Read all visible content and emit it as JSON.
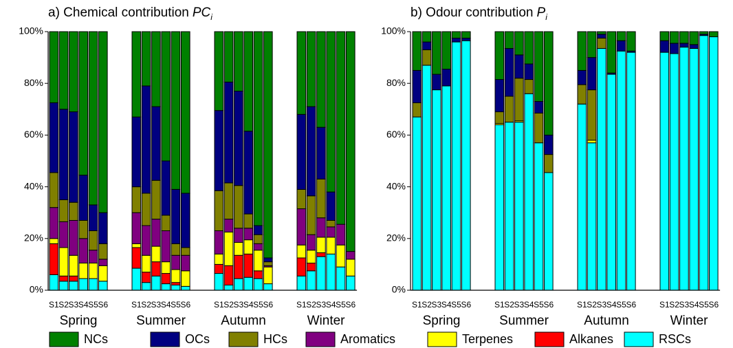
{
  "chart_data": [
    {
      "type": "stacked-bar",
      "title": "a) Chemical contribution",
      "title_symbol": "PC",
      "title_subscript": "i",
      "groups": [
        "Spring",
        "Summer",
        "Autumn",
        "Winter"
      ],
      "categories": [
        "S1",
        "S2",
        "S3",
        "S4",
        "S5",
        "S6",
        "S1",
        "S2",
        "S3",
        "S4",
        "S5",
        "S6",
        "S1",
        "S2",
        "S3",
        "S4",
        "S5",
        "S6",
        "S1",
        "S2",
        "S3",
        "S4",
        "S5",
        "S6"
      ],
      "ylim": [
        0,
        100
      ],
      "yticks": [
        {
          "value": 0,
          "label": "0%"
        },
        {
          "value": 20,
          "label": "20%"
        },
        {
          "value": 40,
          "label": "40%"
        },
        {
          "value": 60,
          "label": "60%"
        },
        {
          "value": 80,
          "label": "80%"
        },
        {
          "value": 100,
          "label": "100%"
        }
      ],
      "series": [
        {
          "name": "RSCs",
          "color": "#00ffff",
          "values": [
            6,
            3.5,
            3.5,
            4.5,
            4.5,
            3.5,
            8.5,
            3,
            5.5,
            2.5,
            2,
            1.5,
            6.5,
            2,
            4.5,
            5,
            4.5,
            2.5,
            5.5,
            7.5,
            13,
            14,
            9,
            5.5
          ]
        },
        {
          "name": "Alkanes",
          "color": "#ff0000",
          "values": [
            12,
            2,
            2,
            0,
            0,
            0,
            8,
            4,
            5.5,
            4,
            1,
            0,
            3.5,
            7.5,
            9,
            9,
            3,
            0,
            7,
            3,
            1.5,
            0,
            0,
            0
          ]
        },
        {
          "name": "Terpenes",
          "color": "#ffff00",
          "values": [
            2,
            11,
            8,
            6,
            6,
            6,
            1.5,
            6.5,
            6,
            4.5,
            5,
            6,
            4,
            13,
            5,
            5.5,
            8,
            6.5,
            5,
            5,
            6,
            6.5,
            8.5,
            6.5
          ]
        },
        {
          "name": "Aromatics",
          "color": "#800080",
          "values": [
            12,
            10,
            13.5,
            9.5,
            5,
            2.5,
            12,
            11.5,
            10.5,
            12,
            5.5,
            6,
            9,
            5,
            5.5,
            4.5,
            2.5,
            0.5,
            14,
            6,
            7.5,
            4,
            8,
            3
          ]
        },
        {
          "name": "HCs",
          "color": "#808000",
          "values": [
            13.5,
            8.5,
            7,
            7,
            7.5,
            6,
            10,
            12.5,
            15,
            6,
            4.5,
            3,
            15.5,
            14,
            16.5,
            5.5,
            3.5,
            1.5,
            7.5,
            15,
            15,
            2.5,
            0,
            0
          ]
        },
        {
          "name": "OCs",
          "color": "#000080",
          "values": [
            27,
            35,
            35,
            17.5,
            10,
            12,
            27,
            41.5,
            28.5,
            21,
            21,
            21,
            31,
            39,
            36.5,
            32,
            3.5,
            1.5,
            29,
            34.5,
            20,
            11,
            0,
            0
          ]
        },
        {
          "name": "NCs",
          "color": "#008000",
          "values": [
            27.5,
            30,
            31,
            55.5,
            67,
            70,
            33,
            21,
            29,
            50,
            61,
            62.5,
            30.5,
            19.5,
            23,
            38.5,
            75,
            87.5,
            32,
            29,
            37,
            62,
            74.5,
            85
          ]
        }
      ]
    },
    {
      "type": "stacked-bar",
      "title": "b) Odour contribution",
      "title_symbol": "P",
      "title_subscript": "i",
      "groups": [
        "Spring",
        "Summer",
        "Autumn",
        "Winter"
      ],
      "categories": [
        "S1",
        "S2",
        "S3",
        "S4",
        "S5",
        "S6",
        "S1",
        "S2",
        "S3",
        "S4",
        "S5",
        "S6",
        "S1",
        "S2",
        "S3",
        "S4",
        "S5",
        "S6",
        "S1",
        "S2",
        "S3",
        "S4",
        "S5",
        "S6"
      ],
      "ylim": [
        0,
        100
      ],
      "yticks": [
        {
          "value": 0,
          "label": "0%"
        },
        {
          "value": 20,
          "label": "20%"
        },
        {
          "value": 40,
          "label": "40%"
        },
        {
          "value": 60,
          "label": "60%"
        },
        {
          "value": 80,
          "label": "80%"
        },
        {
          "value": 100,
          "label": "100%"
        }
      ],
      "series": [
        {
          "name": "RSCs",
          "color": "#00ffff",
          "values": [
            67,
            87,
            77.5,
            79,
            96,
            96.5,
            64,
            65,
            65,
            76,
            57,
            45.5,
            72,
            57,
            93.5,
            83.5,
            92.5,
            92,
            92,
            91.5,
            94,
            93.5,
            98.5,
            98
          ]
        },
        {
          "name": "Alkanes",
          "color": "#ff0000",
          "values": [
            0,
            0,
            0,
            0,
            0,
            0,
            0,
            0,
            0,
            0,
            0,
            0,
            0,
            0,
            0,
            0,
            0,
            0,
            0,
            0,
            0,
            0,
            0,
            0
          ]
        },
        {
          "name": "Terpenes",
          "color": "#ffff00",
          "values": [
            0,
            0,
            0,
            0,
            0,
            0,
            0.5,
            0,
            0.5,
            0,
            0,
            0,
            0,
            1,
            0,
            0,
            0,
            0,
            0,
            0,
            0,
            0,
            0,
            0
          ]
        },
        {
          "name": "Aromatics",
          "color": "#800080",
          "values": [
            0,
            0,
            0,
            0,
            0,
            0,
            0,
            0,
            0,
            0,
            0,
            0,
            0,
            0,
            0,
            0,
            0,
            0,
            0,
            0,
            0,
            0,
            0,
            0
          ]
        },
        {
          "name": "HCs",
          "color": "#808000",
          "values": [
            5.5,
            6,
            0,
            0,
            0,
            0,
            4.5,
            10,
            16.5,
            5.5,
            11.5,
            7,
            7.5,
            19.5,
            4,
            0,
            0,
            0,
            0,
            0,
            0,
            0,
            0,
            0
          ]
        },
        {
          "name": "OCs",
          "color": "#000080",
          "values": [
            12.5,
            3,
            6,
            6.5,
            1.5,
            1,
            12.5,
            18.5,
            9,
            6,
            4.5,
            7.5,
            5.5,
            12.5,
            1.5,
            0.5,
            4,
            0.5,
            4.5,
            4,
            1.5,
            1.5,
            0.5,
            0
          ]
        },
        {
          "name": "NCs",
          "color": "#008000",
          "values": [
            15,
            4,
            16.5,
            14.5,
            2.5,
            2.5,
            18.5,
            6.5,
            9,
            12.5,
            27,
            40,
            15,
            10,
            1,
            16,
            3.5,
            7.5,
            3.5,
            4.5,
            4.5,
            5,
            1,
            2
          ]
        }
      ]
    }
  ]
}
